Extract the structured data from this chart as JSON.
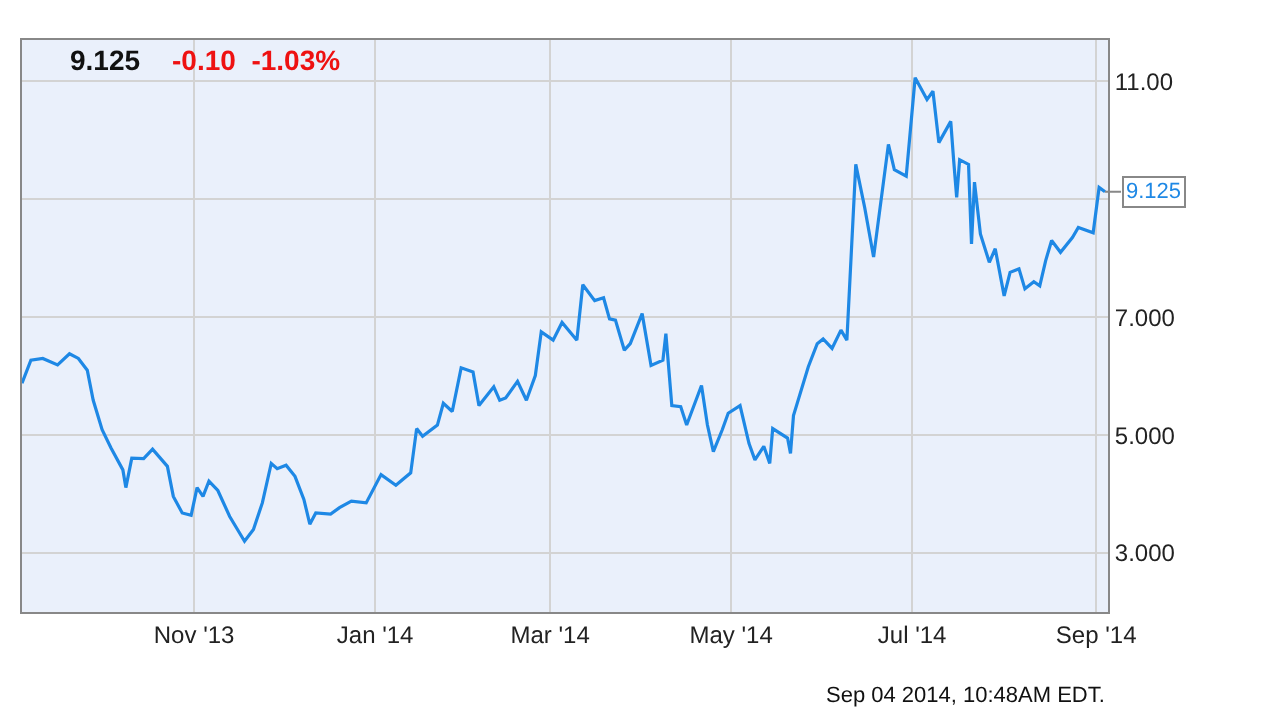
{
  "chart_data": {
    "type": "line",
    "title": "9.125",
    "subtitle": "-0.10  -1.03%",
    "x": [
      "2013-09-04",
      "2013-09-07",
      "2013-09-11",
      "2013-09-16",
      "2013-09-20",
      "2013-09-23",
      "2013-09-26",
      "2013-09-28",
      "2013-10-01",
      "2013-10-04",
      "2013-10-08",
      "2013-10-09",
      "2013-10-11",
      "2013-10-15",
      "2013-10-18",
      "2013-10-23",
      "2013-10-25",
      "2013-10-28",
      "2013-10-31",
      "2013-11-02",
      "2013-11-04",
      "2013-11-06",
      "2013-11-09",
      "2013-11-13",
      "2013-11-18",
      "2013-11-21",
      "2013-11-24",
      "2013-11-27",
      "2013-11-29",
      "2013-12-02",
      "2013-12-05",
      "2013-12-08",
      "2013-12-10",
      "2013-12-12",
      "2013-12-17",
      "2013-12-20",
      "2013-12-24",
      "2013-12-29",
      "2014-01-03",
      "2014-01-08",
      "2014-01-13",
      "2014-01-15",
      "2014-01-17",
      "2014-01-22",
      "2014-01-24",
      "2014-01-27",
      "2014-01-30",
      "2014-02-03",
      "2014-02-05",
      "2014-02-10",
      "2014-02-12",
      "2014-02-14",
      "2014-02-18",
      "2014-02-21",
      "2014-02-24",
      "2014-02-26",
      "2014-03-02",
      "2014-03-05",
      "2014-03-10",
      "2014-03-12",
      "2014-03-16",
      "2014-03-19",
      "2014-03-21",
      "2014-03-23",
      "2014-03-26",
      "2014-03-28",
      "2014-04-01",
      "2014-04-04",
      "2014-04-08",
      "2014-04-09",
      "2014-04-11",
      "2014-04-14",
      "2014-04-16",
      "2014-04-21",
      "2014-04-23",
      "2014-04-25",
      "2014-04-28",
      "2014-04-30",
      "2014-05-04",
      "2014-05-07",
      "2014-05-09",
      "2014-05-12",
      "2014-05-14",
      "2014-05-15",
      "2014-05-20",
      "2014-05-21",
      "2014-05-22",
      "2014-05-27",
      "2014-05-30",
      "2014-06-01",
      "2014-06-04",
      "2014-06-07",
      "2014-06-09",
      "2014-06-12",
      "2014-06-15",
      "2014-06-18",
      "2014-06-23",
      "2014-06-25",
      "2014-06-29",
      "2014-07-02",
      "2014-07-06",
      "2014-07-08",
      "2014-07-10",
      "2014-07-14",
      "2014-07-15",
      "2014-07-16",
      "2014-07-17",
      "2014-07-20",
      "2014-07-21",
      "2014-07-22",
      "2014-07-24",
      "2014-07-27",
      "2014-07-29",
      "2014-08-01",
      "2014-08-03",
      "2014-08-06",
      "2014-08-08",
      "2014-08-11",
      "2014-08-13",
      "2014-08-15",
      "2014-08-17",
      "2014-08-20",
      "2014-08-24",
      "2014-08-26",
      "2014-08-31",
      "2014-09-02",
      "2014-09-04"
    ],
    "series": [
      {
        "color": "#1e88e5",
        "values": [
          5.88,
          6.27,
          6.3,
          6.19,
          6.38,
          6.3,
          6.1,
          5.59,
          5.09,
          4.78,
          4.41,
          4.11,
          4.61,
          4.6,
          4.76,
          4.47,
          3.96,
          3.68,
          3.64,
          4.11,
          3.96,
          4.22,
          4.06,
          3.62,
          3.2,
          3.4,
          3.85,
          4.52,
          4.43,
          4.49,
          4.3,
          3.91,
          3.49,
          3.68,
          3.66,
          3.77,
          3.88,
          3.85,
          4.33,
          4.15,
          4.36,
          5.11,
          4.98,
          5.17,
          5.54,
          5.4,
          6.14,
          6.07,
          5.5,
          5.82,
          5.59,
          5.63,
          5.91,
          5.59,
          6.01,
          6.75,
          6.61,
          6.91,
          6.61,
          7.55,
          7.28,
          7.33,
          6.97,
          6.95,
          6.44,
          6.55,
          7.06,
          6.18,
          6.27,
          6.72,
          5.5,
          5.48,
          5.17,
          5.84,
          5.17,
          4.72,
          5.09,
          5.37,
          5.5,
          4.86,
          4.58,
          4.81,
          4.52,
          5.11,
          4.95,
          4.69,
          5.33,
          6.16,
          6.55,
          6.63,
          6.47,
          6.78,
          6.61,
          9.59,
          8.86,
          8.02,
          9.93,
          9.5,
          9.39,
          11.06,
          10.69,
          10.83,
          9.96,
          10.32,
          9.65,
          9.03,
          9.67,
          9.59,
          8.24,
          9.29,
          8.41,
          7.93,
          8.16,
          7.36,
          7.76,
          7.82,
          7.48,
          7.6,
          7.53,
          7.96,
          8.3,
          8.1,
          8.35,
          8.52,
          8.43,
          9.2,
          9.125
        ]
      }
    ],
    "xlim": [
      "2013-09-04",
      "2014-09-05"
    ],
    "xticks": [
      {
        "value": "2013-11-01",
        "label": "Nov '13"
      },
      {
        "value": "2014-01-01",
        "label": "Jan '14"
      },
      {
        "value": "2014-03-01",
        "label": "Mar '14"
      },
      {
        "value": "2014-05-01",
        "label": "May '14"
      },
      {
        "value": "2014-07-01",
        "label": "Jul '14"
      },
      {
        "value": "2014-09-01",
        "label": "Sep '14"
      }
    ],
    "ylim": [
      2,
      11.7
    ],
    "yticks": [
      {
        "value": 3,
        "label": "3.000"
      },
      {
        "value": 5,
        "label": "5.000"
      },
      {
        "value": 7,
        "label": "7.000"
      },
      {
        "value": 9,
        "label": null
      },
      {
        "value": 11,
        "label": "11.00"
      }
    ],
    "grid": true,
    "marker": "none",
    "line_style": "solid",
    "annotations": [
      {
        "text": "9.125",
        "x": "2014-09-04",
        "y": 9.125
      },
      "Sep 04 2014, 10:48AM EDT."
    ]
  }
}
